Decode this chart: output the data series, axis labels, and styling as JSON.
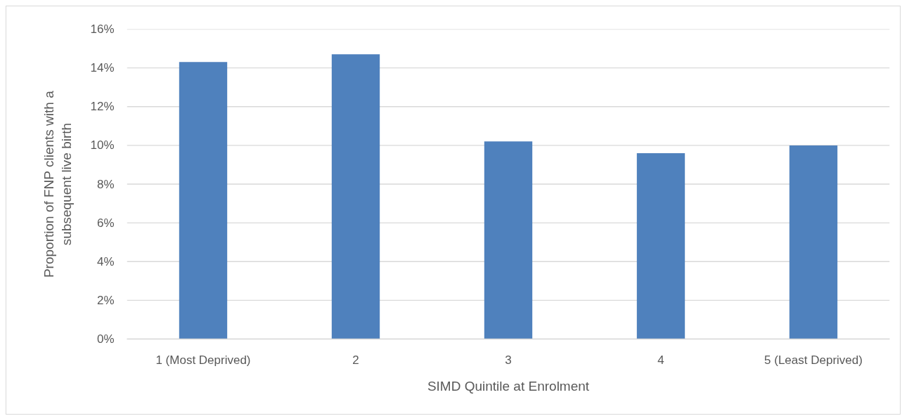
{
  "chart_data": {
    "type": "bar",
    "xlabel": "SIMD Quintile at Enrolment",
    "ylabel": "Proportion of FNP clients with a subsequent live birth",
    "categories": [
      "1 (Most Deprived)",
      "2",
      "3",
      "4",
      "5 (Least Deprived)"
    ],
    "values": [
      14.3,
      14.7,
      10.2,
      9.6,
      10.0
    ],
    "color": "#4f81bd",
    "ylim": [
      0,
      16
    ],
    "yticks": [
      {
        "value": 0,
        "label": "0%"
      },
      {
        "value": 2,
        "label": "2%"
      },
      {
        "value": 4,
        "label": "4%"
      },
      {
        "value": 6,
        "label": "6%"
      },
      {
        "value": 8,
        "label": "8%"
      },
      {
        "value": 10,
        "label": "10%"
      },
      {
        "value": 12,
        "label": "12%"
      },
      {
        "value": 14,
        "label": "14%"
      },
      {
        "value": 16,
        "label": "16%"
      }
    ],
    "grid": "y"
  }
}
